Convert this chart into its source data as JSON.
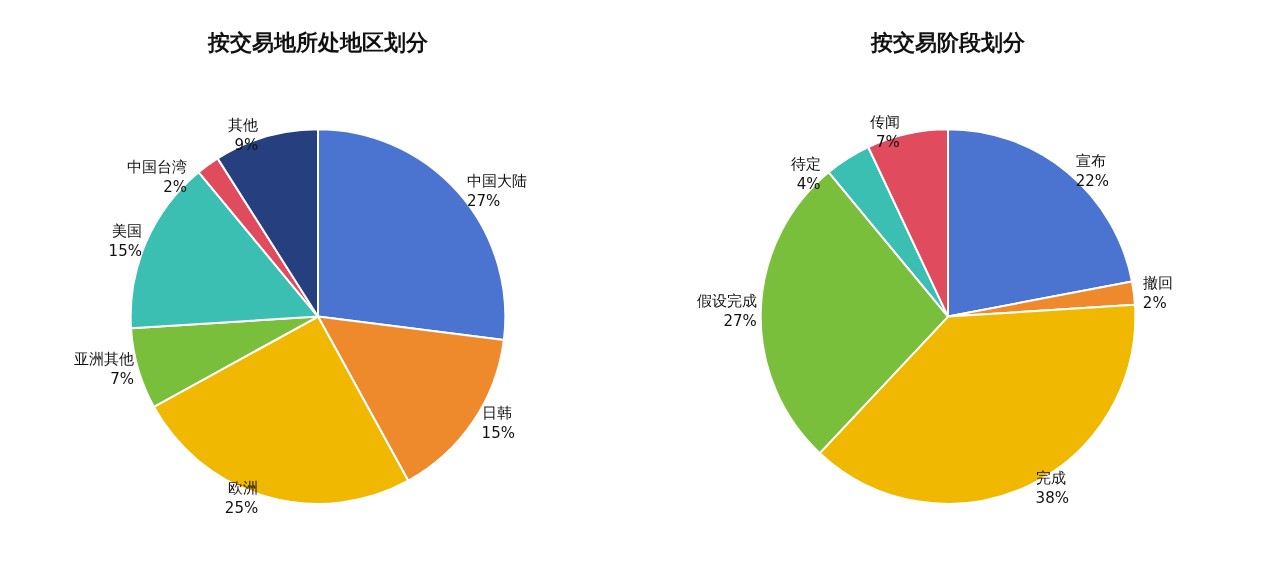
{
  "chart_data": [
    {
      "type": "pie",
      "title": "按交易地所处地区划分",
      "categories": [
        "中国大陆",
        "日韩",
        "欧洲",
        "亚洲其他",
        "美国",
        "中国台湾",
        "其他"
      ],
      "values": [
        27,
        15,
        25,
        7,
        15,
        2,
        9
      ],
      "value_labels": [
        "27%",
        "15%",
        "25%",
        "7%",
        "15%",
        "2%",
        "9%"
      ],
      "colors": [
        "#4a74d0",
        "#ee8a2c",
        "#f0b800",
        "#79bf3b",
        "#3bbfb2",
        "#e04b5e",
        "#253f7f"
      ],
      "legend": false
    },
    {
      "type": "pie",
      "title": "按交易阶段划分",
      "categories": [
        "宣布",
        "撤回",
        "完成",
        "假设完成",
        "待定",
        "传闻"
      ],
      "values": [
        22,
        2,
        38,
        27,
        4,
        7
      ],
      "value_labels": [
        "22%",
        "2%",
        "38%",
        "27%",
        "4%",
        "7%"
      ],
      "colors": [
        "#4a74d0",
        "#ee8a2c",
        "#f0b800",
        "#79bf3b",
        "#3bbfb2",
        "#e04b5e"
      ],
      "legend": false
    }
  ]
}
